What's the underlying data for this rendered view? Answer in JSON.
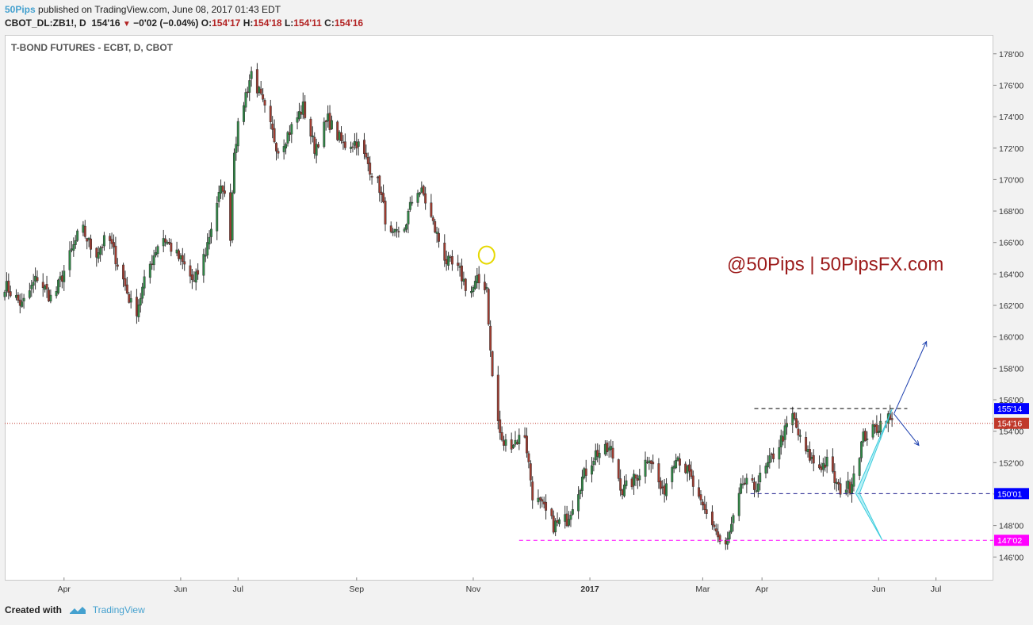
{
  "header": {
    "author": "50Pips",
    "published_text": "published on TradingView.com, June 08, 2017 01:43 EDT",
    "symbol": "CBOT_DL:ZB1!, D",
    "last": "154'16",
    "change": "−0'02 (−0.04%)",
    "o_label": "O:",
    "o_value": "154'17",
    "h_label": "H:",
    "h_value": "154'18",
    "l_label": "L:",
    "l_value": "154'11",
    "c_label": "C:",
    "c_value": "154'16"
  },
  "footer": {
    "created_with": "Created with",
    "brand": "TradingView"
  },
  "colors": {
    "up": "#2f8a46",
    "down": "#a33b2f",
    "wick": "#333333",
    "price_line": "#c0392b",
    "blue_label": "#0000ff",
    "magenta": "#ff00ff",
    "pattern_fill": "#7fe6f0",
    "arrow": "#1c3fae",
    "watermark": "#9c1c1c"
  },
  "chart_data": {
    "type": "candlestick",
    "title": "T-BOND FUTURES - ECBT, D, CBOT",
    "watermark": "@50Pips | 50PipsFX.com",
    "ylim": [
      144.5,
      179.2
    ],
    "y_ticks": [
      {
        "value": 146,
        "label": "146'00"
      },
      {
        "value": 148,
        "label": "148'00"
      },
      {
        "value": 150,
        "label": "150'00"
      },
      {
        "value": 152,
        "label": "152'00"
      },
      {
        "value": 154,
        "label": "154'00"
      },
      {
        "value": 156,
        "label": "156'00"
      },
      {
        "value": 158,
        "label": "158'00"
      },
      {
        "value": 160,
        "label": "160'00"
      },
      {
        "value": 162,
        "label": "162'00"
      },
      {
        "value": 164,
        "label": "164'00"
      },
      {
        "value": 166,
        "label": "166'00"
      },
      {
        "value": 168,
        "label": "168'00"
      },
      {
        "value": 170,
        "label": "170'00"
      },
      {
        "value": 172,
        "label": "172'00"
      },
      {
        "value": 174,
        "label": "174'00"
      },
      {
        "value": 176,
        "label": "176'00"
      },
      {
        "value": 178,
        "label": "178'00"
      }
    ],
    "x_range": [
      "2016-03-01",
      "2017-07-31"
    ],
    "x_ticks": [
      {
        "date": "2016-04-01",
        "label": "Apr"
      },
      {
        "date": "2016-06-01",
        "label": "Jun"
      },
      {
        "date": "2016-07-01",
        "label": "Jul"
      },
      {
        "date": "2016-09-01",
        "label": "Sep"
      },
      {
        "date": "2016-11-01",
        "label": "Nov"
      },
      {
        "date": "2017-01-01",
        "label": "2017",
        "bold": true
      },
      {
        "date": "2017-03-01",
        "label": "Mar"
      },
      {
        "date": "2017-04-01",
        "label": "Apr"
      },
      {
        "date": "2017-06-01",
        "label": "Jun"
      },
      {
        "date": "2017-07-01",
        "label": "Jul"
      }
    ],
    "price_levels": [
      {
        "value": 155.4375,
        "label": "155'14",
        "color": "#0000ff",
        "line": "dashed-black",
        "from": "2017-03-28",
        "to": "2017-06-16"
      },
      {
        "value": 154.5,
        "label": "154'16",
        "color": "#c0392b",
        "line": "dotted-red",
        "from": "2016-03-01",
        "to": "2017-07-31"
      },
      {
        "value": 150.03125,
        "label": "150'01",
        "color": "#0000ff",
        "line": "dashed-navy",
        "from": "2017-03-26",
        "to": "2017-07-31"
      },
      {
        "value": 147.0625,
        "label": "147'02",
        "color": "#ff00ff",
        "line": "dashed-magenta",
        "from": "2016-11-25",
        "to": "2017-07-31"
      }
    ],
    "pattern": [
      {
        "date": "2017-06-08",
        "price": 155.4
      },
      {
        "date": "2017-05-20",
        "price": 150.05
      },
      {
        "date": "2017-06-03",
        "price": 147.05
      },
      {
        "date": "2017-05-22",
        "price": 150.05
      }
    ],
    "arrows": [
      {
        "from": {
          "date": "2017-06-09",
          "price": 155.1
        },
        "to": {
          "date": "2017-06-26",
          "price": 159.7
        }
      },
      {
        "from": {
          "date": "2017-06-09",
          "price": 155.1
        },
        "to": {
          "date": "2017-06-22",
          "price": 153.1
        }
      }
    ],
    "marker": {
      "date": "2016-11-08",
      "price": 165.2
    },
    "waypoints": [
      [
        "2016-03-01",
        163.3
      ],
      [
        "2016-03-10",
        162.0
      ],
      [
        "2016-03-18",
        163.8
      ],
      [
        "2016-03-26",
        162.3
      ],
      [
        "2016-04-03",
        164.8
      ],
      [
        "2016-04-10",
        167.0
      ],
      [
        "2016-04-17",
        165.2
      ],
      [
        "2016-04-24",
        166.4
      ],
      [
        "2016-05-01",
        164.0
      ],
      [
        "2016-05-08",
        161.3
      ],
      [
        "2016-05-15",
        164.3
      ],
      [
        "2016-05-22",
        166.5
      ],
      [
        "2016-05-28",
        165.5
      ],
      [
        "2016-06-03",
        164.5
      ],
      [
        "2016-06-08",
        163.4
      ],
      [
        "2016-06-14",
        165.4
      ],
      [
        "2016-06-20",
        168.6
      ],
      [
        "2016-06-23",
        169.6
      ],
      [
        "2016-06-27",
        166.5
      ],
      [
        "2016-06-29",
        172.0
      ],
      [
        "2016-07-03",
        174.5
      ],
      [
        "2016-07-08",
        176.8
      ],
      [
        "2016-07-12",
        175.5
      ],
      [
        "2016-07-16",
        174.0
      ],
      [
        "2016-07-22",
        171.9
      ],
      [
        "2016-07-29",
        173.3
      ],
      [
        "2016-08-04",
        174.6
      ],
      [
        "2016-08-10",
        172.0
      ],
      [
        "2016-08-17",
        173.8
      ],
      [
        "2016-08-25",
        172.2
      ],
      [
        "2016-09-01",
        172.4
      ],
      [
        "2016-09-07",
        171.0
      ],
      [
        "2016-09-13",
        169.5
      ],
      [
        "2016-09-18",
        166.3
      ],
      [
        "2016-09-25",
        166.5
      ],
      [
        "2016-10-02",
        169.5
      ],
      [
        "2016-10-06",
        169.0
      ],
      [
        "2016-10-12",
        166.8
      ],
      [
        "2016-10-18",
        164.8
      ],
      [
        "2016-10-25",
        164.1
      ],
      [
        "2016-10-30",
        162.7
      ],
      [
        "2016-11-03",
        163.5
      ],
      [
        "2016-11-08",
        163.2
      ],
      [
        "2016-11-10",
        159.0
      ],
      [
        "2016-11-12",
        156.0
      ],
      [
        "2016-11-16",
        153.2
      ],
      [
        "2016-11-22",
        153.3
      ],
      [
        "2016-11-28",
        153.8
      ],
      [
        "2016-12-02",
        150.0
      ],
      [
        "2016-12-08",
        149.0
      ],
      [
        "2016-12-13",
        148.0
      ],
      [
        "2016-12-20",
        148.4
      ],
      [
        "2016-12-28",
        151.0
      ],
      [
        "2017-01-04",
        152.6
      ],
      [
        "2017-01-12",
        152.8
      ],
      [
        "2017-01-18",
        150.2
      ],
      [
        "2017-01-25",
        151.0
      ],
      [
        "2017-02-01",
        152.5
      ],
      [
        "2017-02-08",
        150.0
      ],
      [
        "2017-02-15",
        152.6
      ],
      [
        "2017-02-22",
        151.2
      ],
      [
        "2017-02-28",
        149.2
      ],
      [
        "2017-03-07",
        148.0
      ],
      [
        "2017-03-12",
        146.2
      ],
      [
        "2017-03-17",
        148.3
      ],
      [
        "2017-03-22",
        150.7
      ],
      [
        "2017-03-28",
        150.4
      ],
      [
        "2017-04-04",
        151.8
      ],
      [
        "2017-04-10",
        153.2
      ],
      [
        "2017-04-17",
        155.0
      ],
      [
        "2017-04-22",
        153.0
      ],
      [
        "2017-04-30",
        151.7
      ],
      [
        "2017-05-05",
        152.0
      ],
      [
        "2017-05-11",
        150.3
      ],
      [
        "2017-05-17",
        150.5
      ],
      [
        "2017-05-24",
        153.6
      ],
      [
        "2017-05-31",
        154.2
      ],
      [
        "2017-06-05",
        155.0
      ],
      [
        "2017-06-08",
        154.5
      ]
    ]
  }
}
